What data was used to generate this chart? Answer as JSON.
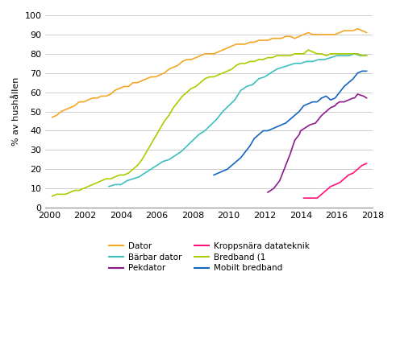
{
  "title": "",
  "ylabel": "% av hushållen",
  "ylim": [
    0,
    100
  ],
  "xlim": [
    1999.8,
    2018
  ],
  "xticks": [
    2000,
    2002,
    2004,
    2006,
    2008,
    2010,
    2012,
    2014,
    2016,
    2018
  ],
  "yticks": [
    0,
    10,
    20,
    30,
    40,
    50,
    60,
    70,
    80,
    90,
    100
  ],
  "series": {
    "Dator": {
      "color": "#F5A623",
      "x": [
        2000.17,
        2000.42,
        2000.67,
        2000.92,
        2001.17,
        2001.42,
        2001.67,
        2001.92,
        2002.17,
        2002.42,
        2002.67,
        2002.92,
        2003.17,
        2003.42,
        2003.67,
        2003.92,
        2004.17,
        2004.42,
        2004.67,
        2004.92,
        2005.17,
        2005.42,
        2005.67,
        2005.92,
        2006.17,
        2006.42,
        2006.67,
        2006.92,
        2007.17,
        2007.42,
        2007.67,
        2007.92,
        2008.17,
        2008.42,
        2008.67,
        2008.92,
        2009.17,
        2009.42,
        2009.67,
        2009.92,
        2010.17,
        2010.42,
        2010.67,
        2010.92,
        2011.17,
        2011.42,
        2011.67,
        2011.92,
        2012.17,
        2012.42,
        2012.67,
        2012.92,
        2013.17,
        2013.42,
        2013.67,
        2013.92,
        2014.17,
        2014.42,
        2014.67,
        2014.92,
        2015.17,
        2015.42,
        2015.67,
        2015.92,
        2016.17,
        2016.42,
        2016.67,
        2016.92,
        2017.17,
        2017.42,
        2017.67
      ],
      "y": [
        47,
        48,
        50,
        51,
        52,
        53,
        55,
        55,
        56,
        57,
        57,
        58,
        58,
        59,
        61,
        62,
        63,
        63,
        65,
        65,
        66,
        67,
        68,
        68,
        69,
        70,
        72,
        73,
        74,
        76,
        77,
        77,
        78,
        79,
        80,
        80,
        80,
        81,
        82,
        83,
        84,
        85,
        85,
        85,
        86,
        86,
        87,
        87,
        87,
        88,
        88,
        88,
        89,
        89,
        88,
        89,
        90,
        91,
        90,
        90,
        90,
        90,
        90,
        90,
        91,
        92,
        92,
        92,
        93,
        92,
        91
      ]
    },
    "Bärbar dator": {
      "color": "#3DBFBF",
      "x": [
        2003.33,
        2003.67,
        2004.0,
        2004.33,
        2004.67,
        2005.0,
        2005.33,
        2005.67,
        2006.0,
        2006.33,
        2006.67,
        2007.0,
        2007.33,
        2007.67,
        2008.0,
        2008.33,
        2008.67,
        2009.0,
        2009.33,
        2009.67,
        2010.0,
        2010.33,
        2010.67,
        2011.0,
        2011.33,
        2011.67,
        2012.0,
        2012.33,
        2012.67,
        2013.0,
        2013.33,
        2013.67,
        2014.0,
        2014.33,
        2014.67,
        2015.0,
        2015.33,
        2015.67,
        2016.0,
        2016.33,
        2016.67,
        2017.0,
        2017.33,
        2017.67
      ],
      "y": [
        11,
        12,
        12,
        14,
        15,
        16,
        18,
        20,
        22,
        24,
        25,
        27,
        29,
        32,
        35,
        38,
        40,
        43,
        46,
        50,
        53,
        56,
        61,
        63,
        64,
        67,
        68,
        70,
        72,
        73,
        74,
        75,
        75,
        76,
        76,
        77,
        77,
        78,
        79,
        79,
        79,
        80,
        79,
        79
      ]
    },
    "Pekdator": {
      "color": "#8B1A8B",
      "x": [
        2012.17,
        2012.5,
        2012.83,
        2013.0,
        2013.17,
        2013.42,
        2013.67,
        2013.92,
        2014.0,
        2014.17,
        2014.5,
        2014.83,
        2015.0,
        2015.17,
        2015.42,
        2015.67,
        2015.92,
        2016.0,
        2016.17,
        2016.42,
        2016.67,
        2016.92,
        2017.0,
        2017.17,
        2017.5,
        2017.67
      ],
      "y": [
        8,
        10,
        14,
        18,
        22,
        28,
        35,
        38,
        40,
        41,
        43,
        44,
        46,
        48,
        50,
        52,
        53,
        54,
        55,
        55,
        56,
        57,
        57,
        59,
        58,
        57
      ]
    },
    "Kroppsnära datateknik": {
      "color": "#FF1177",
      "x": [
        2014.17,
        2014.42,
        2014.67,
        2014.92,
        2015.17,
        2015.42,
        2015.67,
        2015.92,
        2016.17,
        2016.42,
        2016.67,
        2016.92,
        2017.17,
        2017.42,
        2017.67
      ],
      "y": [
        5,
        5,
        5,
        5,
        7,
        9,
        11,
        12,
        13,
        15,
        17,
        18,
        20,
        22,
        23
      ]
    },
    "Bredband (1": {
      "color": "#AACC00",
      "x": [
        2000.17,
        2000.42,
        2000.67,
        2000.92,
        2001.17,
        2001.42,
        2001.67,
        2001.92,
        2002.17,
        2002.42,
        2002.67,
        2002.92,
        2003.17,
        2003.42,
        2003.67,
        2003.92,
        2004.17,
        2004.42,
        2004.67,
        2004.92,
        2005.17,
        2005.42,
        2005.67,
        2005.92,
        2006.17,
        2006.42,
        2006.67,
        2006.92,
        2007.17,
        2007.42,
        2007.67,
        2007.92,
        2008.17,
        2008.42,
        2008.67,
        2008.92,
        2009.17,
        2009.42,
        2009.67,
        2009.92,
        2010.17,
        2010.42,
        2010.67,
        2010.92,
        2011.17,
        2011.42,
        2011.67,
        2011.92,
        2012.17,
        2012.42,
        2012.67,
        2012.92,
        2013.17,
        2013.42,
        2013.67,
        2013.92,
        2014.17,
        2014.42,
        2014.67,
        2014.92,
        2015.17,
        2015.42,
        2015.67,
        2015.92,
        2016.17,
        2016.42,
        2016.67,
        2016.92,
        2017.17,
        2017.42,
        2017.67
      ],
      "y": [
        6,
        7,
        7,
        7,
        8,
        9,
        9,
        10,
        11,
        12,
        13,
        14,
        15,
        15,
        16,
        17,
        17,
        18,
        20,
        22,
        25,
        29,
        33,
        37,
        41,
        45,
        48,
        52,
        55,
        58,
        60,
        62,
        63,
        65,
        67,
        68,
        68,
        69,
        70,
        71,
        72,
        74,
        75,
        75,
        76,
        76,
        77,
        77,
        78,
        78,
        79,
        79,
        79,
        79,
        80,
        80,
        80,
        82,
        81,
        80,
        80,
        79,
        80,
        80,
        80,
        80,
        80,
        80,
        80,
        79,
        79
      ]
    },
    "Mobilt bredband": {
      "color": "#1565C0",
      "x": [
        2009.17,
        2009.42,
        2009.67,
        2009.92,
        2010.17,
        2010.42,
        2010.67,
        2010.92,
        2011.17,
        2011.42,
        2011.67,
        2011.92,
        2012.17,
        2012.42,
        2012.67,
        2012.92,
        2013.17,
        2013.42,
        2013.67,
        2013.92,
        2014.17,
        2014.42,
        2014.67,
        2014.92,
        2015.17,
        2015.42,
        2015.67,
        2015.92,
        2016.17,
        2016.42,
        2016.67,
        2016.92,
        2017.17,
        2017.42,
        2017.67
      ],
      "y": [
        17,
        18,
        19,
        20,
        22,
        24,
        26,
        29,
        32,
        36,
        38,
        40,
        40,
        41,
        42,
        43,
        44,
        46,
        48,
        50,
        53,
        54,
        55,
        55,
        57,
        58,
        56,
        57,
        60,
        63,
        65,
        67,
        70,
        71,
        71
      ]
    }
  },
  "legend_cols": [
    [
      "Dator",
      "Pekdator",
      "Bredband (1"
    ],
    [
      "Bärbar dator",
      "Kroppsnära datateknik",
      "Mobilt bredband"
    ]
  ],
  "background_color": "#ffffff",
  "grid_color": "#cccccc"
}
